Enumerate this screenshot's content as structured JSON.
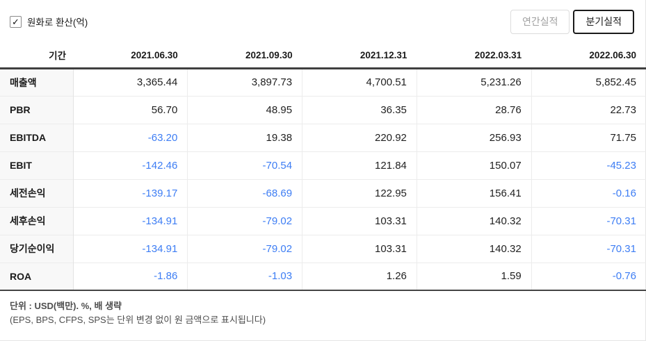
{
  "colors": {
    "negative_value": "#3d7df4",
    "positive_value": "#1f1f1f",
    "header_border": "#3f3f3f"
  },
  "controls": {
    "krw_toggle": {
      "checked": true,
      "check_glyph": "✓",
      "label": "원화로 환산(억)"
    },
    "annual_button_label": "연간실적",
    "quarterly_button_label": "분기실적",
    "selected_view": "분기실적"
  },
  "table": {
    "period_header": "기간",
    "columns": [
      "2021.06.30",
      "2021.09.30",
      "2021.12.31",
      "2022.03.31",
      "2022.06.30"
    ],
    "rows": [
      {
        "label": "매출액",
        "values": [
          "3,365.44",
          "3,897.73",
          "4,700.51",
          "5,231.26",
          "5,852.45"
        ],
        "group_start": false
      },
      {
        "label": "PBR",
        "values": [
          "56.70",
          "48.95",
          "36.35",
          "28.76",
          "22.73"
        ],
        "group_start": false
      },
      {
        "label": "EBITDA",
        "values": [
          "-63.20",
          "19.38",
          "220.92",
          "256.93",
          "71.75"
        ],
        "group_start": false
      },
      {
        "label": "EBIT",
        "values": [
          "-142.46",
          "-70.54",
          "121.84",
          "150.07",
          "-45.23"
        ],
        "group_start": false
      },
      {
        "label": "세전손익",
        "values": [
          "-139.17",
          "-68.69",
          "122.95",
          "156.41",
          "-0.16"
        ],
        "group_start": false
      },
      {
        "label": "세후손익",
        "values": [
          "-134.91",
          "-79.02",
          "103.31",
          "140.32",
          "-70.31"
        ],
        "group_start": true
      },
      {
        "label": "당기순이익",
        "values": [
          "-134.91",
          "-79.02",
          "103.31",
          "140.32",
          "-70.31"
        ],
        "group_start": false
      },
      {
        "label": "ROA",
        "values": [
          "-1.86",
          "-1.03",
          "1.26",
          "1.59",
          "-0.76"
        ],
        "group_start": false
      }
    ]
  },
  "footer": {
    "line1": "단위 : USD(백만). %, 배 생략",
    "line2": "(EPS, BPS, CFPS, SPS는 단위 변경 없이 원 금액으로 표시됩니다)"
  }
}
